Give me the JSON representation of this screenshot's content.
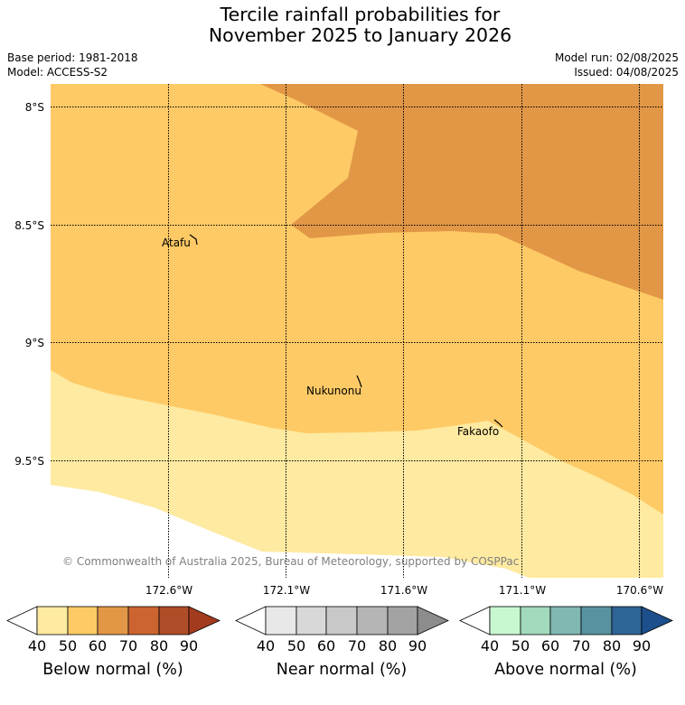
{
  "title": {
    "line1": "Tercile rainfall probabilities for",
    "line2": "November 2025 to January 2026"
  },
  "meta": {
    "base_period": "Base period: 1981-2018",
    "model": "Model: ACCESS-S2",
    "model_run": "Model run: 02/08/2025",
    "issued": "Issued: 04/08/2025"
  },
  "map": {
    "lat_labels": [
      "8°S",
      "8.5°S",
      "9°S",
      "9.5°S"
    ],
    "lon_labels": [
      "172.6°W",
      "172.1°W",
      "171.6°W",
      "171.1°W",
      "170.6°W"
    ],
    "places": [
      "Atafu",
      "Nukunonu",
      "Fakaofo"
    ],
    "copyright": "© Commonwealth of Australia 2025, Bureau of Meteorology, supported by COSPPac",
    "colors": {
      "below_40_50": "#feeaa0",
      "below_50_60": "#feca66",
      "below_60_70": "#e29746",
      "no_data": "#ffffff"
    }
  },
  "legends": [
    {
      "title": "Below normal (%)",
      "ticks": [
        "40",
        "50",
        "60",
        "70",
        "80",
        "90"
      ],
      "colors": [
        "#ffffff",
        "#feeaa0",
        "#feca66",
        "#e29746",
        "#cb6430",
        "#b04d29",
        "#a33b1f"
      ]
    },
    {
      "title": "Near normal (%)",
      "ticks": [
        "40",
        "50",
        "60",
        "70",
        "80",
        "90"
      ],
      "colors": [
        "#ffffff",
        "#e8e8e8",
        "#d8d8d8",
        "#c8c8c8",
        "#b5b5b5",
        "#a3a3a3",
        "#8c8c8c"
      ]
    },
    {
      "title": "Above normal (%)",
      "ticks": [
        "40",
        "50",
        "60",
        "70",
        "80",
        "90"
      ],
      "colors": [
        "#ffffff",
        "#c8f8d0",
        "#a3d9bc",
        "#80b8b2",
        "#5892a0",
        "#2f6496",
        "#1d4f8c"
      ]
    }
  ]
}
